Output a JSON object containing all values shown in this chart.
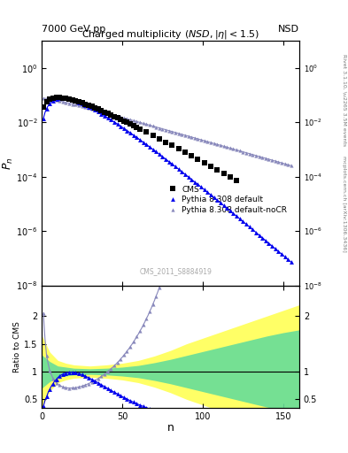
{
  "title_top_left": "7000 GeV pp",
  "title_top_right": "NSD",
  "main_title": "Charged multiplicity (NSD, |\\u03b7| < 1.5)",
  "ylabel_main": "P_n",
  "ylabel_ratio": "Ratio to CMS",
  "xlabel": "n",
  "right_label_top": "Rivet 3.1.10, \\u2265 3.5M events",
  "right_label_bot": "mcplots.cern.ch [arXiv:1306.3436]",
  "watermark": "CMS_2011_S8884919",
  "ylim_main": [
    1e-08,
    10.0
  ],
  "xlim": [
    0,
    160
  ],
  "ratio_ylim": [
    0.35,
    2.55
  ],
  "colors": {
    "cms": "#000000",
    "pythia_default": "#0000ee",
    "pythia_nocr": "#8888bb",
    "band_yellow": "#ffff66",
    "band_green": "#66dd99"
  }
}
